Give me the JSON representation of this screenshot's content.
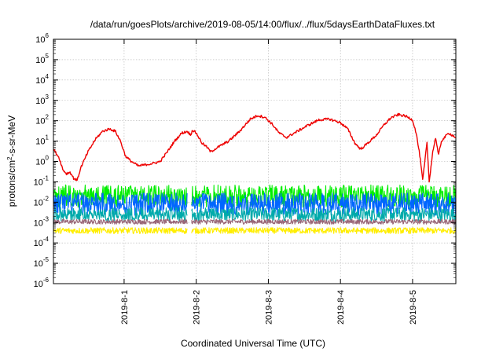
{
  "chart_data": {
    "type": "line",
    "title": "/data/run/goesPlots/archive/2019-08-05/14:00/flux/../flux/5daysEarthDataFluxes.txt",
    "xlabel": "Coordinated Universal Time (UTC)",
    "ylabel": "protons/cm²-s-sr-MeV",
    "ylabel_parts": {
      "pre": "protons/cm",
      "sup": "2",
      "post": "-s-sr-MeV"
    },
    "y_scale": "log",
    "ylim": [
      1e-06,
      1000000.0
    ],
    "y_ticks": [
      {
        "exp": "-6"
      },
      {
        "exp": "-5"
      },
      {
        "exp": "-4"
      },
      {
        "exp": "-3"
      },
      {
        "exp": "-2"
      },
      {
        "exp": "-1"
      },
      {
        "exp": "0"
      },
      {
        "exp": "1"
      },
      {
        "exp": "2"
      },
      {
        "exp": "3"
      },
      {
        "exp": "4"
      },
      {
        "exp": "5"
      },
      {
        "exp": "6"
      }
    ],
    "y_tick_base": "10",
    "xlim": [
      -0.98,
      4.6
    ],
    "x_unit": "days since 2019-08-01 00:00 UTC",
    "x_ticks": [
      {
        "label": "2019-8-1",
        "value": 0
      },
      {
        "label": "2019-8-2",
        "value": 1
      },
      {
        "label": "2019-8-3",
        "value": 2
      },
      {
        "label": "2019-8-4",
        "value": 3
      },
      {
        "label": "2019-8-5",
        "value": 4
      }
    ],
    "grid": true,
    "legend": "none",
    "series": [
      {
        "color": "#ee0000",
        "points": [
          [
            -0.98,
            4
          ],
          [
            -0.9,
            1.5
          ],
          [
            -0.85,
            0.4
          ],
          [
            -0.8,
            0.25
          ],
          [
            -0.75,
            0.3
          ],
          [
            -0.7,
            0.15
          ],
          [
            -0.65,
            0.12
          ],
          [
            -0.6,
            0.5
          ],
          [
            -0.5,
            3
          ],
          [
            -0.4,
            12
          ],
          [
            -0.3,
            30
          ],
          [
            -0.2,
            40
          ],
          [
            -0.12,
            30
          ],
          [
            -0.05,
            10
          ],
          [
            0.02,
            1.8
          ],
          [
            0.1,
            1
          ],
          [
            0.2,
            0.6
          ],
          [
            0.3,
            0.7
          ],
          [
            0.4,
            0.8
          ],
          [
            0.5,
            1
          ],
          [
            0.6,
            3
          ],
          [
            0.7,
            10
          ],
          [
            0.8,
            25
          ],
          [
            0.88,
            30
          ],
          [
            0.92,
            20
          ],
          [
            0.95,
            35
          ],
          [
            1.0,
            25
          ],
          [
            1.08,
            8
          ],
          [
            1.15,
            5
          ],
          [
            1.2,
            3
          ],
          [
            1.3,
            5
          ],
          [
            1.45,
            10
          ],
          [
            1.6,
            30
          ],
          [
            1.75,
            120
          ],
          [
            1.85,
            180
          ],
          [
            1.95,
            150
          ],
          [
            2.05,
            70
          ],
          [
            2.15,
            25
          ],
          [
            2.25,
            15
          ],
          [
            2.4,
            30
          ],
          [
            2.55,
            60
          ],
          [
            2.7,
            110
          ],
          [
            2.85,
            120
          ],
          [
            3.0,
            80
          ],
          [
            3.1,
            40
          ],
          [
            3.2,
            8
          ],
          [
            3.28,
            4
          ],
          [
            3.38,
            8
          ],
          [
            3.5,
            20
          ],
          [
            3.6,
            60
          ],
          [
            3.7,
            140
          ],
          [
            3.8,
            200
          ],
          [
            3.9,
            170
          ],
          [
            4.0,
            110
          ],
          [
            4.05,
            25
          ],
          [
            4.1,
            2
          ],
          [
            4.14,
            0.12
          ],
          [
            4.2,
            8
          ],
          [
            4.23,
            0.1
          ],
          [
            4.28,
            3
          ],
          [
            4.32,
            15
          ],
          [
            4.36,
            2
          ],
          [
            4.4,
            10
          ],
          [
            4.5,
            25
          ],
          [
            4.6,
            15
          ]
        ]
      },
      {
        "color": "#00ee00",
        "baseline": 0.02,
        "spread": 0.55
      },
      {
        "color": "#0066ff",
        "baseline": 0.008,
        "spread": 0.55
      },
      {
        "color": "#00aaaa",
        "baseline": 0.0025,
        "spread": 0.35
      },
      {
        "color": "#996677",
        "baseline": 0.0011,
        "spread": 0.12
      },
      {
        "color": "#ffee00",
        "baseline": 0.0004,
        "spread": 0.15
      }
    ]
  }
}
